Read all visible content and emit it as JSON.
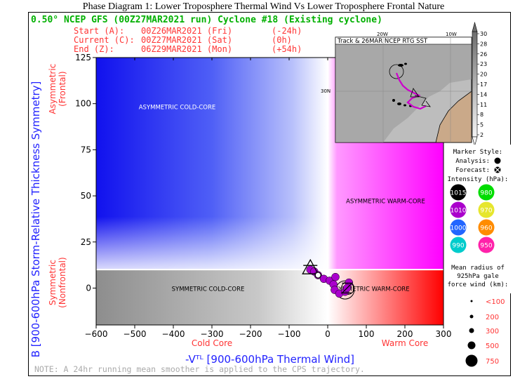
{
  "page_title": "Phase Diagram 1: Lower Troposphere Thermal Wind Vs Lower Troposphere Frontal Nature",
  "header": {
    "title": "0.50° NCEP GFS (00Z27MAR2021 run) Cyclone #18 (Existing cyclone)",
    "lines": [
      {
        "label": "Start (A):",
        "time": "00Z26MAR2021 (Fri)",
        "offset": "(-24h)"
      },
      {
        "label": "Current (C):",
        "time": "00Z27MAR2021 (Sat)",
        "offset": "(0h)"
      },
      {
        "label": "End (Z):",
        "time": "06Z29MAR2021 (Mon)",
        "offset": "(+54h)"
      }
    ]
  },
  "note": "NOTE:  A 24hr running mean smoother is applied to the CPS trajectory.",
  "chart_data": {
    "type": "scatter",
    "xlabel": "-Vᵀᴸ [900-600hPa Thermal Wind]",
    "ylabel": "B [900-600hPa Storm-Relative Thickness Symmetry]",
    "xlim": [
      -600,
      300
    ],
    "ylim": [
      -20,
      125
    ],
    "xticks": [
      -600,
      -500,
      -400,
      -300,
      -200,
      -100,
      0,
      100,
      200,
      300
    ],
    "yticks": [
      0,
      25,
      50,
      75,
      100,
      125
    ],
    "x_side_labels": {
      "left": "Cold Core",
      "right": "Warm Core"
    },
    "y_side_labels": {
      "top": "Asymmetric\n(Frontal)",
      "bottom": "Symmetric\n(Nonfrontal)"
    },
    "quadrants": {
      "asym_cold": "ASYMMETRIC COLD-CORE",
      "asym_warm": "ASYMMETRIC WARM-CORE",
      "sym_cold": "SYMMETRIC COLD-CORE",
      "sym_warm": "SYMMETRIC WARM-CORE"
    },
    "b_threshold": 10,
    "start_marker": {
      "label": "A",
      "x": -45,
      "y": 10
    },
    "current_marker": {
      "label": "C",
      "x": -25,
      "y": 7
    },
    "end_marker": {
      "label": "Z",
      "x": 50,
      "y": 0
    },
    "trajectory": [
      {
        "x": -45,
        "y": 10,
        "intensity": 1010,
        "phase": "analysis"
      },
      {
        "x": -35,
        "y": 9,
        "intensity": 1010,
        "phase": "analysis"
      },
      {
        "x": -25,
        "y": 7,
        "intensity": 1010,
        "phase": "analysis"
      },
      {
        "x": -10,
        "y": 5,
        "intensity": 1010,
        "phase": "forecast"
      },
      {
        "x": 5,
        "y": 4,
        "intensity": 1010,
        "phase": "forecast"
      },
      {
        "x": 20,
        "y": 6,
        "intensity": 1010,
        "phase": "forecast"
      },
      {
        "x": 15,
        "y": 2,
        "intensity": 1010,
        "phase": "forecast"
      },
      {
        "x": 18,
        "y": -1,
        "intensity": 1010,
        "phase": "forecast"
      },
      {
        "x": 30,
        "y": -3,
        "intensity": 1010,
        "phase": "forecast"
      },
      {
        "x": 45,
        "y": -2,
        "intensity": 1010,
        "phase": "forecast"
      },
      {
        "x": 55,
        "y": 3,
        "intensity": 1010,
        "phase": "forecast"
      },
      {
        "x": 50,
        "y": 0,
        "intensity": 1010,
        "phase": "forecast"
      }
    ]
  },
  "inset": {
    "title": "Track & 26MAR NCEP RTG SST",
    "lon_labels": [
      "20W",
      "10W"
    ],
    "lat_label": "30N",
    "colorbar": [
      2,
      5,
      8,
      11,
      14,
      17,
      20,
      23,
      26,
      28,
      30
    ]
  },
  "legend": {
    "marker_style_title": "Marker Style:",
    "analysis_label": "Analysis:",
    "forecast_label": "Forecast:",
    "intensity_title": "Intensity (hPa):",
    "intensity": [
      {
        "value": "1015",
        "color": "#000000"
      },
      {
        "value": "980",
        "color": "#00dd00"
      },
      {
        "value": "1010",
        "color": "#aa00cc"
      },
      {
        "value": "970",
        "color": "#e6e62e"
      },
      {
        "value": "1000",
        "color": "#2266ff"
      },
      {
        "value": "960",
        "color": "#ff8c00"
      },
      {
        "value": "990",
        "color": "#00cccc"
      },
      {
        "value": "950",
        "color": "#ff22aa"
      }
    ],
    "radius_title": "Mean radius of 925hPa gale force wind (km):",
    "radius_lines": [
      "Mean radius of",
      "925hPa gale",
      "force wind (km):"
    ],
    "radius": [
      "<100",
      "200",
      "300",
      "500",
      "750"
    ]
  }
}
